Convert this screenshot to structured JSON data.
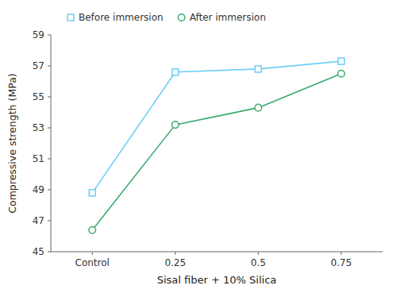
{
  "chart_data": {
    "type": "line",
    "xlabel": "Sisal fiber + 10% Silica",
    "ylabel": "Compressive strength (MPa)",
    "categories": [
      "Control",
      "0.25",
      "0.5",
      "0.75"
    ],
    "series": [
      {
        "name": "Before immersion",
        "color": "#6dcff6",
        "marker": "square",
        "values": [
          48.8,
          56.6,
          56.8,
          57.3
        ]
      },
      {
        "name": "After immersion",
        "color": "#3aaa6e",
        "marker": "circle",
        "values": [
          46.4,
          53.2,
          54.3,
          56.5
        ]
      }
    ],
    "ylim": [
      45,
      59
    ],
    "yticks": [
      45,
      47,
      49,
      51,
      53,
      55,
      57,
      59
    ],
    "legend": "upper left",
    "grid": false
  }
}
